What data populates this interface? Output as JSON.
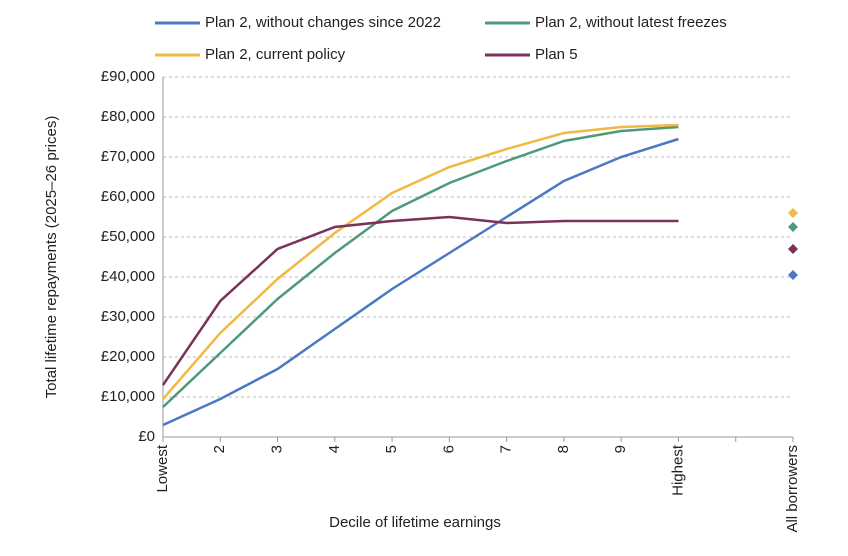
{
  "chart_data": {
    "type": "line",
    "y_label": "Total lifetime repayments (2025–26 prices)",
    "x_label": "Decile of lifetime earnings",
    "categories": [
      "Lowest",
      "2",
      "3",
      "4",
      "5",
      "6",
      "7",
      "8",
      "9",
      "Highest",
      null,
      "All borrowers"
    ],
    "series": [
      {
        "name": "Plan 2, without changes since 2022",
        "color": "#4a78c2",
        "values": [
          3000,
          9500,
          17000,
          27000,
          37000,
          46000,
          55000,
          64000,
          70000,
          74500,
          null,
          40500
        ]
      },
      {
        "name": "Plan 2, without latest freezes",
        "color": "#4e9a78",
        "values": [
          7500,
          21000,
          34500,
          46000,
          56500,
          63500,
          69000,
          74000,
          76500,
          77500,
          null,
          52500
        ]
      },
      {
        "name": "Plan 2, current policy",
        "color": "#f0b942",
        "values": [
          9500,
          26000,
          39500,
          51000,
          61000,
          67500,
          72000,
          76000,
          77500,
          78000,
          null,
          56000
        ]
      },
      {
        "name": "Plan 5",
        "color": "#7b3258",
        "values": [
          13000,
          34000,
          47000,
          52500,
          54000,
          55000,
          53500,
          54000,
          54000,
          54000,
          null,
          47000
        ]
      }
    ],
    "ylim": [
      0,
      90000
    ],
    "yticks": [
      {
        "value": 0,
        "label": "£0"
      },
      {
        "value": 10000,
        "label": "£10,000"
      },
      {
        "value": 20000,
        "label": "£20,000"
      },
      {
        "value": 30000,
        "label": "£30,000"
      },
      {
        "value": 40000,
        "label": "£40,000"
      },
      {
        "value": 50000,
        "label": "£50,000"
      },
      {
        "value": 60000,
        "label": "£60,000"
      },
      {
        "value": 70000,
        "label": "£70,000"
      },
      {
        "value": 80000,
        "label": "£80,000"
      },
      {
        "value": 90000,
        "label": "£90,000"
      }
    ],
    "grid": true
  }
}
